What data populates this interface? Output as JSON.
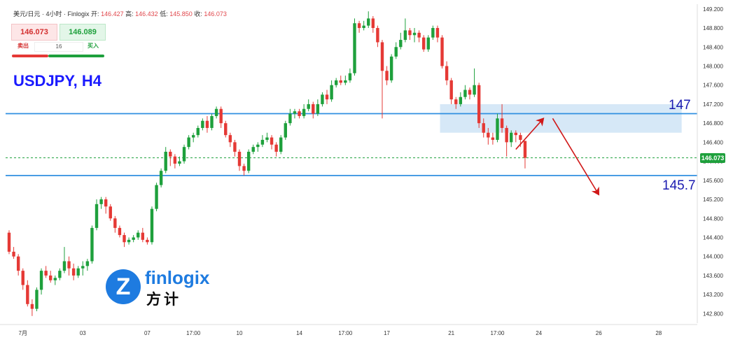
{
  "header": {
    "title": "美元/日元 · 4小时 · Finlogix",
    "open_label": "开:",
    "open": "146.427",
    "high_label": "高:",
    "high": "146.432",
    "low_label": "低:",
    "low": "145.850",
    "close_label": "收:",
    "close": "146.073"
  },
  "quote": {
    "sell_price": "146.073",
    "buy_price": "146.089",
    "sell_label": "卖出",
    "buy_label": "买入",
    "spread": "16"
  },
  "symbol_title": "USDJPY, H4",
  "logo": {
    "text": "finlogix",
    "cn": "方计"
  },
  "annotations": {
    "resistance_label": "147",
    "support_label": "145.7"
  },
  "current_price_tag": "146.073",
  "colors": {
    "up": "#1ea03c",
    "down": "#e53935",
    "level_line": "#2f8fe0",
    "zone": "#cfe4f6",
    "arrow": "#d01818"
  },
  "chart_data": {
    "type": "candlestick",
    "ylim": [
      142.6,
      149.3
    ],
    "yticks": [
      "149.200",
      "148.800",
      "148.400",
      "148.000",
      "147.600",
      "147.200",
      "146.800",
      "146.400",
      "146.000",
      "145.600",
      "145.200",
      "144.800",
      "144.400",
      "144.000",
      "143.600",
      "143.200",
      "142.800"
    ],
    "xticks": [
      "7月",
      "03",
      "07",
      "17:00",
      "10",
      "14",
      "17:00",
      "17",
      "21",
      "17:00",
      "24",
      "26",
      "28"
    ],
    "horizontal_lines": [
      147.0,
      145.7
    ],
    "dashed_line": 146.073,
    "zone": {
      "from_candle": 94,
      "to_date_index": 146,
      "low": 146.6,
      "high": 147.2
    },
    "forecast_arrows": [
      {
        "from": [
          110,
          146.25
        ],
        "to": [
          116,
          146.9
        ]
      },
      {
        "from": [
          118,
          146.9
        ],
        "to": [
          128,
          145.3
        ]
      }
    ],
    "candles": [
      [
        144.5,
        144.1,
        144.55,
        144.05
      ],
      [
        144.1,
        144.0,
        144.2,
        143.95
      ],
      [
        144.0,
        143.7,
        144.05,
        143.6
      ],
      [
        143.7,
        143.4,
        143.75,
        143.3
      ],
      [
        143.4,
        143.0,
        143.5,
        142.95
      ],
      [
        143.0,
        142.9,
        143.1,
        142.75
      ],
      [
        142.9,
        143.3,
        143.35,
        142.85
      ],
      [
        143.3,
        143.7,
        143.75,
        143.2
      ],
      [
        143.7,
        143.6,
        143.8,
        143.55
      ],
      [
        143.6,
        143.5,
        143.7,
        143.45
      ],
      [
        143.5,
        143.55,
        143.6,
        143.4
      ],
      [
        143.55,
        143.7,
        143.75,
        143.5
      ],
      [
        143.7,
        143.9,
        144.2,
        143.65
      ],
      [
        143.9,
        143.75,
        144.0,
        143.6
      ],
      [
        143.75,
        143.6,
        143.85,
        143.5
      ],
      [
        143.6,
        143.75,
        143.8,
        143.55
      ],
      [
        143.75,
        143.8,
        143.9,
        143.6
      ],
      [
        143.8,
        143.9,
        143.95,
        143.7
      ],
      [
        143.9,
        144.6,
        144.65,
        143.85
      ],
      [
        144.6,
        145.1,
        145.2,
        144.55
      ],
      [
        145.1,
        145.2,
        145.25,
        145.0
      ],
      [
        145.2,
        145.05,
        145.25,
        144.9
      ],
      [
        145.05,
        144.8,
        145.1,
        144.75
      ],
      [
        144.8,
        144.6,
        144.85,
        144.5
      ],
      [
        144.6,
        144.45,
        144.65,
        144.4
      ],
      [
        144.45,
        144.3,
        144.5,
        144.2
      ],
      [
        144.3,
        144.35,
        144.4,
        144.25
      ],
      [
        144.35,
        144.4,
        144.45,
        144.3
      ],
      [
        144.4,
        144.5,
        144.55,
        144.35
      ],
      [
        144.5,
        144.35,
        144.6,
        144.3
      ],
      [
        144.35,
        144.3,
        144.4,
        144.25
      ],
      [
        144.3,
        145.0,
        145.05,
        144.25
      ],
      [
        145.0,
        145.5,
        145.55,
        144.95
      ],
      [
        145.5,
        145.8,
        145.85,
        145.45
      ],
      [
        145.8,
        146.2,
        146.3,
        145.75
      ],
      [
        146.2,
        146.1,
        146.25,
        145.9
      ],
      [
        146.1,
        145.95,
        146.15,
        145.85
      ],
      [
        145.95,
        146.0,
        146.1,
        145.9
      ],
      [
        146.0,
        146.3,
        146.35,
        145.95
      ],
      [
        146.3,
        146.5,
        146.55,
        146.25
      ],
      [
        146.5,
        146.55,
        146.6,
        146.4
      ],
      [
        146.55,
        146.7,
        146.75,
        146.5
      ],
      [
        146.7,
        146.85,
        146.9,
        146.65
      ],
      [
        146.85,
        146.7,
        146.95,
        146.6
      ],
      [
        146.7,
        146.95,
        147.0,
        146.65
      ],
      [
        146.95,
        147.1,
        147.15,
        146.9
      ],
      [
        147.1,
        146.8,
        147.15,
        146.7
      ],
      [
        146.8,
        146.55,
        146.85,
        146.5
      ],
      [
        146.55,
        146.4,
        146.6,
        146.3
      ],
      [
        146.4,
        146.2,
        146.45,
        146.1
      ],
      [
        146.2,
        145.9,
        146.25,
        145.8
      ],
      [
        145.9,
        145.8,
        145.95,
        145.7
      ],
      [
        145.8,
        146.2,
        146.25,
        145.75
      ],
      [
        146.2,
        146.3,
        146.35,
        146.15
      ],
      [
        146.3,
        146.35,
        146.4,
        146.2
      ],
      [
        146.35,
        146.45,
        146.55,
        146.3
      ],
      [
        146.45,
        146.5,
        146.6,
        146.4
      ],
      [
        146.5,
        146.35,
        146.55,
        146.25
      ],
      [
        146.35,
        146.2,
        146.4,
        146.1
      ],
      [
        146.2,
        146.5,
        146.55,
        146.15
      ],
      [
        146.5,
        146.8,
        146.85,
        146.45
      ],
      [
        146.8,
        147.0,
        147.1,
        146.75
      ],
      [
        147.0,
        147.05,
        147.1,
        146.9
      ],
      [
        147.05,
        146.95,
        147.1,
        146.9
      ],
      [
        146.95,
        147.1,
        147.2,
        146.9
      ],
      [
        147.1,
        147.2,
        147.3,
        147.05
      ],
      [
        147.2,
        147.0,
        147.25,
        146.9
      ],
      [
        147.0,
        147.2,
        147.3,
        146.95
      ],
      [
        147.2,
        147.4,
        147.45,
        147.15
      ],
      [
        147.4,
        147.3,
        147.5,
        147.2
      ],
      [
        147.3,
        147.6,
        147.7,
        147.25
      ],
      [
        147.6,
        147.7,
        147.75,
        147.55
      ],
      [
        147.7,
        147.65,
        147.8,
        147.6
      ],
      [
        147.65,
        147.7,
        147.8,
        147.6
      ],
      [
        147.7,
        147.85,
        147.95,
        147.65
      ],
      [
        147.85,
        148.9,
        149.0,
        147.8
      ],
      [
        148.9,
        148.8,
        148.95,
        148.7
      ],
      [
        148.8,
        148.85,
        148.95,
        148.75
      ],
      [
        148.85,
        149.0,
        149.15,
        148.8
      ],
      [
        149.0,
        148.8,
        149.05,
        148.7
      ],
      [
        148.8,
        148.5,
        148.85,
        148.4
      ],
      [
        148.5,
        147.9,
        148.55,
        146.9
      ],
      [
        147.9,
        147.7,
        148.0,
        147.6
      ],
      [
        147.7,
        148.2,
        148.25,
        147.65
      ],
      [
        148.2,
        148.4,
        148.5,
        148.15
      ],
      [
        148.4,
        148.55,
        148.7,
        148.35
      ],
      [
        148.55,
        148.75,
        149.0,
        148.5
      ],
      [
        148.75,
        148.65,
        148.8,
        148.55
      ],
      [
        148.65,
        148.7,
        148.8,
        148.5
      ],
      [
        148.7,
        148.6,
        148.75,
        148.5
      ],
      [
        148.6,
        148.35,
        148.65,
        148.3
      ],
      [
        148.35,
        148.6,
        148.65,
        148.3
      ],
      [
        148.6,
        148.8,
        148.85,
        148.55
      ],
      [
        148.8,
        148.6,
        148.85,
        148.5
      ],
      [
        148.6,
        148.0,
        148.65,
        147.95
      ],
      [
        148.0,
        147.7,
        148.1,
        147.6
      ],
      [
        147.7,
        147.3,
        147.75,
        147.2
      ],
      [
        147.3,
        147.2,
        147.35,
        147.1
      ],
      [
        147.2,
        147.35,
        147.45,
        147.15
      ],
      [
        147.35,
        147.5,
        147.6,
        147.3
      ],
      [
        147.5,
        147.4,
        147.55,
        147.3
      ],
      [
        147.4,
        147.6,
        147.95,
        147.35
      ],
      [
        147.6,
        146.8,
        147.65,
        146.7
      ],
      [
        146.8,
        146.6,
        146.9,
        146.5
      ],
      [
        146.6,
        146.5,
        146.7,
        146.35
      ],
      [
        146.5,
        146.45,
        146.6,
        146.35
      ],
      [
        146.45,
        146.9,
        147.0,
        146.4
      ],
      [
        146.9,
        146.7,
        147.2,
        146.6
      ],
      [
        146.7,
        146.4,
        146.75,
        146.1
      ],
      [
        146.4,
        146.6,
        146.65,
        146.3
      ],
      [
        146.6,
        146.55,
        146.65,
        146.4
      ],
      [
        146.55,
        146.45,
        146.6,
        146.3
      ],
      [
        146.427,
        146.073,
        146.432,
        145.85
      ]
    ]
  }
}
